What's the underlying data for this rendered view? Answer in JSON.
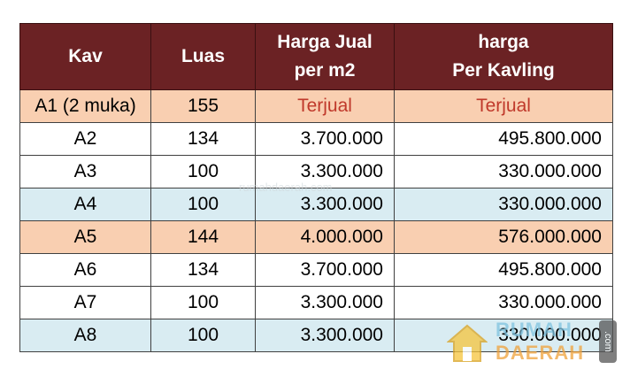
{
  "headers": {
    "kav": "Kav",
    "luas": "Luas",
    "harga_jual_line1": "Harga Jual",
    "harga_jual_line2": "per m2",
    "harga_kavling_line1": "harga",
    "harga_kavling_line2": "Per Kavling"
  },
  "rows": [
    {
      "kav": "A1 (2 muka)",
      "luas": "155",
      "harga_m2": "Terjual",
      "harga_kavling": "Terjual",
      "status": "sold"
    },
    {
      "kav": "A2",
      "luas": "134",
      "harga_m2": "3.700.000",
      "harga_kavling": "495.800.000"
    },
    {
      "kav": "A3",
      "luas": "100",
      "harga_m2": "3.300.000",
      "harga_kavling": "330.000.000"
    },
    {
      "kav": "A4",
      "luas": "100",
      "harga_m2": "3.300.000",
      "harga_kavling": "330.000.000"
    },
    {
      "kav": "A5",
      "luas": "144",
      "harga_m2": "4.000.000",
      "harga_kavling": "576.000.000"
    },
    {
      "kav": "A6",
      "luas": "134",
      "harga_m2": "3.700.000",
      "harga_kavling": "495.800.000"
    },
    {
      "kav": "A7",
      "luas": "100",
      "harga_m2": "3.300.000",
      "harga_kavling": "330.000.000"
    },
    {
      "kav": "A8",
      "luas": "100",
      "harga_m2": "3.300.000",
      "harga_kavling": "330.000.000"
    }
  ],
  "watermark": {
    "line1": "RUMAH",
    "line2": "DAERAH",
    "suffix": ".com",
    "faint": "rumahdaerah.com"
  },
  "colors": {
    "header_bg": "#6b2224",
    "sold_text": "#c0392b",
    "peach_row": "#f9cfb1",
    "blue_row": "#d9ecf2"
  }
}
